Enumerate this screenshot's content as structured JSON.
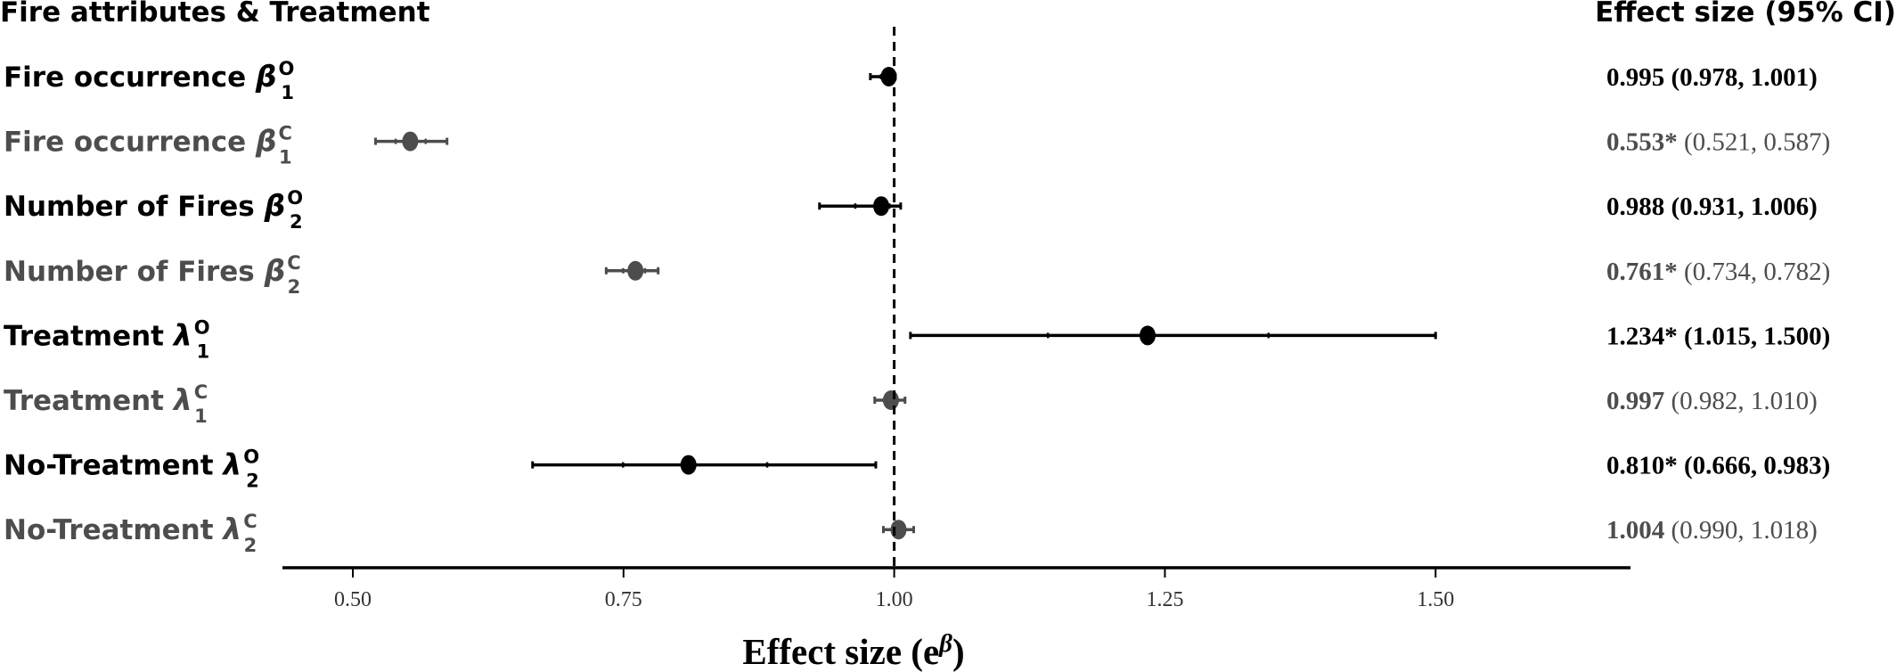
{
  "chart_data": {
    "type": "forest",
    "title_left": "Fire attributes & Treatment",
    "title_right": "Effect size (95% CI)",
    "xlabel": "Effect size (e",
    "xlabel_sup": "β",
    "xlabel_close": ")",
    "xlim": [
      0.435,
      1.68
    ],
    "reference_line": 1.0,
    "ticks": [
      {
        "value": 0.5,
        "label": "0.50"
      },
      {
        "value": 0.75,
        "label": "0.75"
      },
      {
        "value": 1.0,
        "label": "1.00"
      },
      {
        "value": 1.25,
        "label": "1.25"
      },
      {
        "value": 1.5,
        "label": "1.50"
      }
    ],
    "rows": [
      {
        "label": "Fire occurrence ",
        "sym": "β",
        "sub": "1",
        "sup": "O",
        "estimate": 0.995,
        "lower": 0.978,
        "upper": 1.001,
        "est_text": "0.995",
        "ci_text": " (0.978, 1.001)",
        "color": "#000000"
      },
      {
        "label": "Fire occurrence ",
        "sym": "β",
        "sub": "1",
        "sup": "C",
        "estimate": 0.553,
        "lower": 0.521,
        "upper": 0.587,
        "est_text": "0.553*",
        "ci_text": " (0.521, 0.587)",
        "color": "#4d4d4d"
      },
      {
        "label": "Number of Fires ",
        "sym": "β",
        "sub": "2",
        "sup": "O",
        "estimate": 0.988,
        "lower": 0.931,
        "upper": 1.006,
        "est_text": "0.988",
        "ci_text": " (0.931, 1.006)",
        "color": "#000000"
      },
      {
        "label": "Number of Fires ",
        "sym": "β",
        "sub": "2",
        "sup": "C",
        "estimate": 0.761,
        "lower": 0.734,
        "upper": 0.782,
        "est_text": "0.761*",
        "ci_text": " (0.734, 0.782)",
        "color": "#4d4d4d"
      },
      {
        "label": "Treatment ",
        "sym": "λ",
        "sub": "1",
        "sup": "O",
        "estimate": 1.234,
        "lower": 1.015,
        "upper": 1.5,
        "est_text": "1.234*",
        "ci_text": " (1.015, 1.500)",
        "color": "#000000"
      },
      {
        "label": "Treatment ",
        "sym": "λ",
        "sub": "1",
        "sup": "C",
        "estimate": 0.997,
        "lower": 0.982,
        "upper": 1.01,
        "est_text": "0.997",
        "ci_text": " (0.982, 1.010)",
        "color": "#4d4d4d"
      },
      {
        "label": "No-Treatment ",
        "sym": "λ",
        "sub": "2",
        "sup": "O",
        "estimate": 0.81,
        "lower": 0.666,
        "upper": 0.983,
        "est_text": "0.810*",
        "ci_text": " (0.666, 0.983)",
        "color": "#000000"
      },
      {
        "label": "No-Treatment ",
        "sym": "λ",
        "sub": "2",
        "sup": "C",
        "estimate": 1.004,
        "lower": 0.99,
        "upper": 1.018,
        "est_text": "1.004",
        "ci_text": " (0.990, 1.018)",
        "color": "#4d4d4d"
      }
    ]
  }
}
